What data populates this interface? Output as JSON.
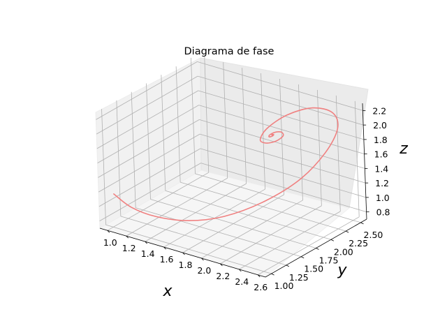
{
  "chart_data": {
    "type": "line",
    "projection": "3d",
    "title": "Diagrama de fase",
    "xlabel": "x",
    "ylabel": "y",
    "zlabel": "z",
    "xlim": [
      0.92,
      2.68
    ],
    "ylim": [
      0.9,
      2.6
    ],
    "zlim": [
      0.7,
      2.3
    ],
    "xticks": [
      "1.0",
      "1.2",
      "1.4",
      "1.6",
      "1.8",
      "2.0",
      "2.2",
      "2.4",
      "2.6"
    ],
    "yticks": [
      "1.00",
      "1.25",
      "1.50",
      "1.75",
      "2.00",
      "2.25",
      "2.50"
    ],
    "zticks": [
      "0.8",
      "1.0",
      "1.2",
      "1.4",
      "1.6",
      "1.8",
      "2.0",
      "2.2"
    ],
    "grid": true,
    "series": [
      {
        "color": "#f08080",
        "points": [
          [
            1.05,
            0.95,
            1.2
          ],
          [
            1.2,
            1.0,
            1.05
          ],
          [
            1.4,
            1.1,
            0.95
          ],
          [
            1.65,
            1.25,
            0.92
          ],
          [
            1.9,
            1.45,
            0.98
          ],
          [
            2.15,
            1.7,
            1.15
          ],
          [
            2.38,
            1.97,
            1.42
          ],
          [
            2.52,
            2.2,
            1.74
          ],
          [
            2.56,
            2.36,
            2.02
          ],
          [
            2.46,
            2.44,
            2.16
          ],
          [
            2.26,
            2.42,
            2.16
          ],
          [
            2.05,
            2.32,
            2.03
          ],
          [
            1.92,
            2.18,
            1.86
          ],
          [
            1.92,
            2.06,
            1.76
          ],
          [
            2.02,
            2.0,
            1.78
          ],
          [
            2.12,
            2.01,
            1.84
          ],
          [
            2.16,
            2.07,
            1.9
          ],
          [
            2.11,
            2.12,
            1.91
          ],
          [
            2.04,
            2.12,
            1.88
          ],
          [
            2.01,
            2.08,
            1.85
          ],
          [
            2.03,
            2.04,
            1.85
          ],
          [
            2.06,
            2.05,
            1.87
          ],
          [
            2.06,
            2.07,
            1.88
          ],
          [
            2.04,
            2.07,
            1.87
          ],
          [
            2.05,
            2.06,
            1.87
          ]
        ]
      }
    ]
  }
}
